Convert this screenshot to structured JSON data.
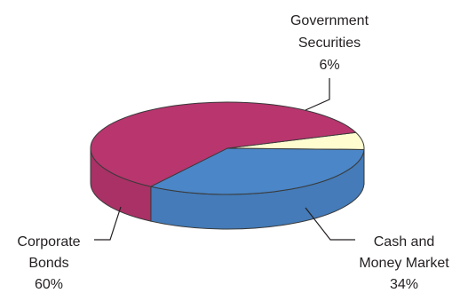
{
  "chart_data": {
    "type": "pie",
    "style": "3d",
    "slices": [
      {
        "label": [
          "Government",
          "Securities"
        ],
        "value": 6,
        "value_label": "6%",
        "color": "#fffdd0"
      },
      {
        "label": [
          "Cash and",
          "Money Market"
        ],
        "value": 34,
        "value_label": "34%",
        "color": "#4a86c8"
      },
      {
        "label": [
          "Corporate",
          "Bonds"
        ],
        "value": 60,
        "value_label": "60%",
        "color": "#b8356e"
      }
    ],
    "legend": "none"
  }
}
